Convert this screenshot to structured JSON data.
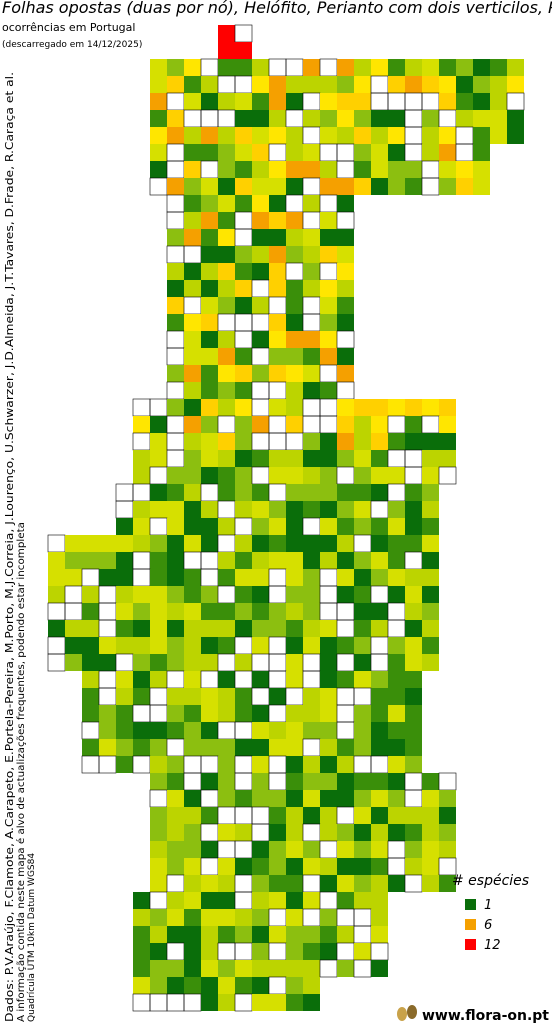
{
  "title": "Folhas opostas (duas por nó), Helófito, Perianto com dois verticilos, Pl",
  "subtitle": "ocorrências em Portugal",
  "download_date": "(descarregado em 14/12/2025)",
  "credits": "Dados: P.V.Araújo, F.Clamote, A.Carapeto, E.Portela-Pereira, M.Porto, M.J.Correia, J.Lourenço, U.Schwarzer, J.D.Almeida, J.T.Tavares, D.Frade, R.Caraça et al.",
  "disclaimer": "A informação contida neste mapa é alvo de actualizações frequentes, podendo estar incompleta",
  "grid_note": "Quadrícula UTM 10km Datum WGS84",
  "legend": {
    "title": "# espécies",
    "items": [
      {
        "value": 1,
        "color": "#0a6e0a"
      },
      {
        "value": 6,
        "color": "#f5a000"
      },
      {
        "value": 12,
        "color": "#ff0000"
      }
    ]
  },
  "site": "www.flora-on.pt"
}
